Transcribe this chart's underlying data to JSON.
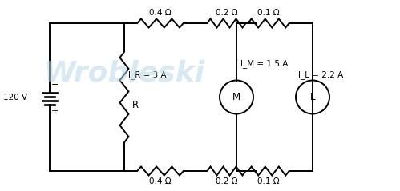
{
  "bg_color": "#ffffff",
  "wire_color": "#000000",
  "label_color": "#000000",
  "watermark_color": "#b8d8ea",
  "voltage": "120 V",
  "ir_label": "I_R = 3 A",
  "im_label": "I_M = 1.5 A",
  "il_label": "I_L = 2.2 A",
  "r_label": "R",
  "m_label": "M",
  "l_label": "L",
  "top_resistors": [
    "0.4 Ω",
    "0.2 Ω",
    "0.1 Ω"
  ],
  "bot_resistors": [
    "0.4 Ω",
    "0.2 Ω",
    "0.1 Ω"
  ],
  "watermark": "Wrobleski",
  "lw": 1.4
}
